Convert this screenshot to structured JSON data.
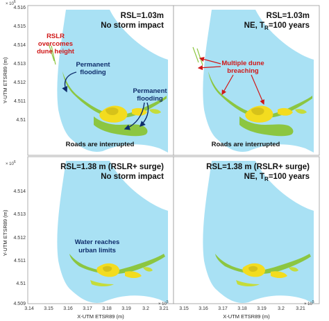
{
  "axes": {
    "ylabel": "Y-UTM ETSR89 (m)",
    "xlabel": "X-UTM ETSR89 (m)",
    "y_exponent_base": "× 10",
    "y_exponent_power": "6",
    "x_exponent_base": "× 10",
    "x_exponent_power": "5",
    "y_ticks": [
      "4.516",
      "4.515",
      "4.514",
      "4.513",
      "4.512",
      "4.511",
      "4.51",
      "4.509"
    ],
    "x_ticks": [
      "3.14",
      "3.15",
      "3.16",
      "3.17",
      "3.18",
      "3.19",
      "3.2",
      "3.21"
    ]
  },
  "panels": [
    {
      "title_line1": "RSL=1.03m",
      "title_line2": "No storm impact"
    },
    {
      "title_line1": "RSL=1.03m",
      "title_line2_prefix": "NE, T",
      "title_line2_sub": "R",
      "title_line2_suffix": "=100 years"
    },
    {
      "title_line1": "RSL=1.38 m (RSLR+ surge)",
      "title_line2": "No storm impact"
    },
    {
      "title_line1": "RSL=1.38 m (RSLR+ surge)",
      "title_line2_prefix": "NE, T",
      "title_line2_sub": "R",
      "title_line2_suffix": "=100 years"
    }
  ],
  "annotations": {
    "rslr": [
      "RSLR",
      "overcomes",
      "dune height"
    ],
    "permanent_flooding_1": [
      "Permanent",
      "flooding"
    ],
    "permanent_flooding_2": [
      "Permanent",
      "flooding"
    ],
    "roads_1": "Roads are interrupted",
    "multiple_dune": [
      "Multiple dune",
      "breaching"
    ],
    "roads_2": "Roads are interrupted",
    "water_urban": [
      "Water reaches",
      "urban limits"
    ]
  },
  "colors": {
    "water": "#a9e1f4",
    "land_green": "#8cc641",
    "urban_yellow": "#f3dc1f",
    "red": "#d01818",
    "navy": "#0e2d6b"
  }
}
